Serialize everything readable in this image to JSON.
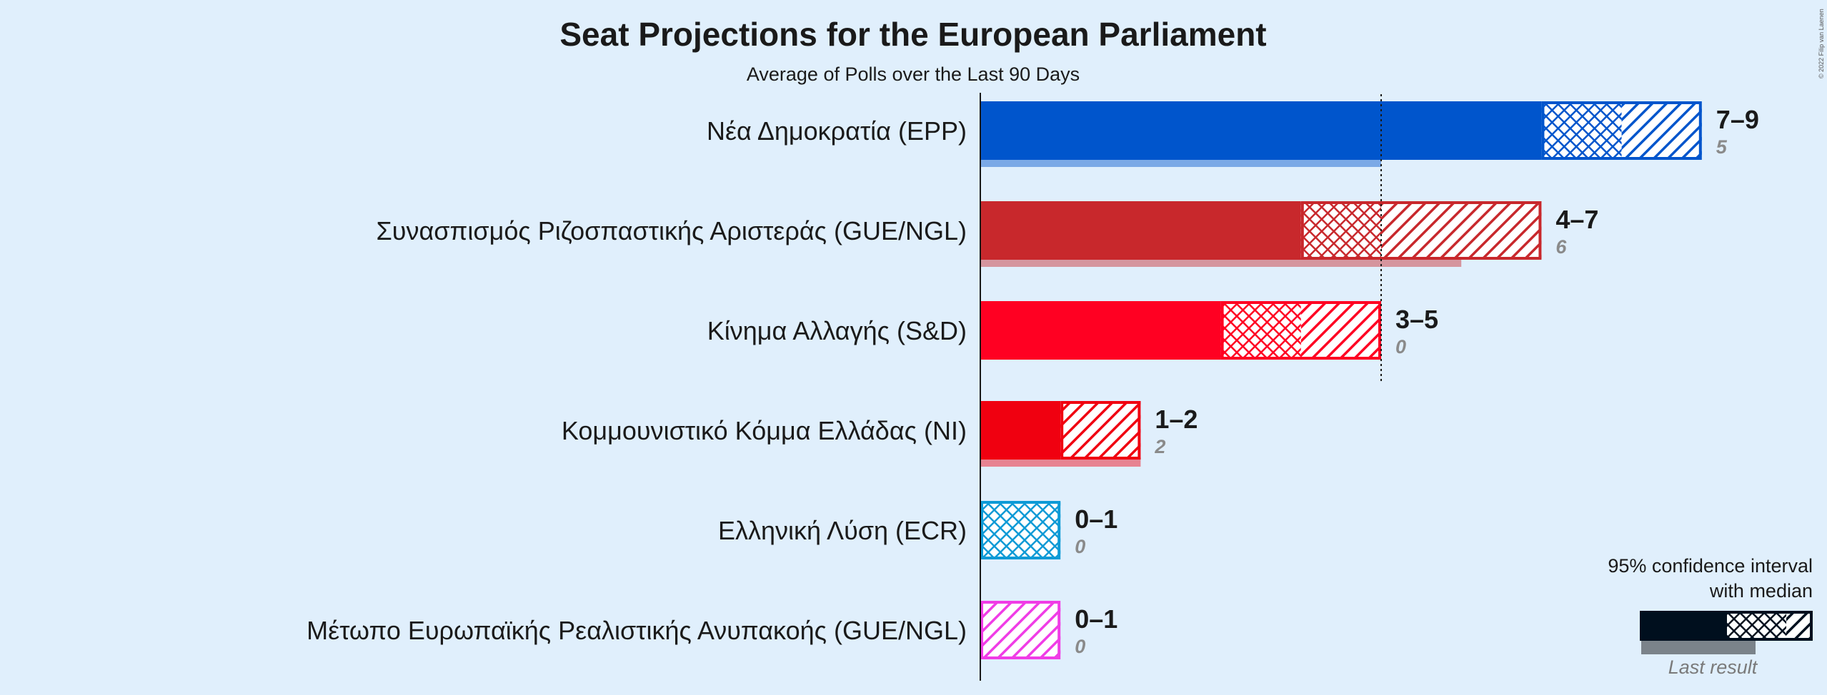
{
  "chart_data": {
    "type": "bar",
    "title": "Seat Projections for the European Parliament",
    "subtitle": "Average of Polls over the Last 90 Days",
    "parties": [
      {
        "name": "Νέα Δημοκρατία (EPP)",
        "color": "#0055cc",
        "low": 7,
        "median": 8,
        "high": 9,
        "last": 5,
        "range_label": "7–9",
        "last_label": "5"
      },
      {
        "name": "Συνασπισμός Ριζοσπαστικής Αριστεράς (GUE/NGL)",
        "color": "#c8282c",
        "low": 4,
        "median": 5,
        "high": 7,
        "last": 6,
        "range_label": "4–7",
        "last_label": "6"
      },
      {
        "name": "Κίνημα Αλλαγής (S&D)",
        "color": "#ff0022",
        "low": 3,
        "median": 4,
        "high": 5,
        "last": 0,
        "range_label": "3–5",
        "last_label": "0"
      },
      {
        "name": "Κομμουνιστικό Κόμμα Ελλάδας (NI)",
        "color": "#f00010",
        "low": 1,
        "median": 1,
        "high": 2,
        "last": 2,
        "range_label": "1–2",
        "last_label": "2"
      },
      {
        "name": "Ελληνική Λύση (ECR)",
        "color": "#0d9ad6",
        "low": 0,
        "median": 1,
        "high": 1,
        "last": 0,
        "range_label": "0–1",
        "last_label": "0"
      },
      {
        "name": "Μέτωπο Ευρωπαϊκής Ρεαλιστικής Ανυπακοής (GUE/NGL)",
        "color": "#f03ce6",
        "low": 0,
        "median": 0,
        "high": 1,
        "last": 0,
        "range_label": "0–1",
        "last_label": "0"
      }
    ],
    "majority_line": 5,
    "legend": {
      "line1": "95% confidence interval",
      "line2": "with median",
      "last_result": "Last result",
      "color": "#000f1e"
    },
    "copyright": "© 2022 Filip van Laenen"
  }
}
